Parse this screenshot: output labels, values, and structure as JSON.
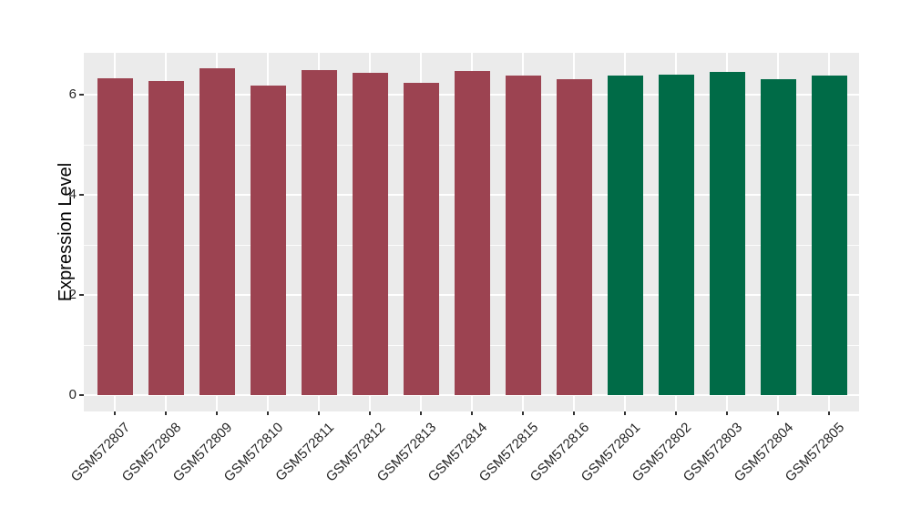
{
  "chart_data": {
    "type": "bar",
    "title": "",
    "xlabel": "",
    "ylabel": "Expression Level",
    "categories": [
      "GSM572807",
      "GSM572808",
      "GSM572809",
      "GSM572810",
      "GSM572811",
      "GSM572812",
      "GSM572813",
      "GSM572814",
      "GSM572815",
      "GSM572816",
      "GSM572801",
      "GSM572802",
      "GSM572803",
      "GSM572804",
      "GSM572805"
    ],
    "values": [
      6.33,
      6.28,
      6.53,
      6.18,
      6.5,
      6.44,
      6.23,
      6.48,
      6.39,
      6.31,
      6.39,
      6.4,
      6.46,
      6.31,
      6.38
    ],
    "bar_groups": [
      "A",
      "A",
      "A",
      "A",
      "A",
      "A",
      "A",
      "A",
      "A",
      "A",
      "B",
      "B",
      "B",
      "B",
      "B"
    ],
    "group_colors": {
      "A": "#9C4351",
      "B": "#006B47"
    },
    "yticks": [
      0,
      2,
      4,
      6
    ],
    "yminor": [
      1,
      3,
      5
    ],
    "ylim": [
      -0.33,
      6.85
    ],
    "grid": "on",
    "legend": "none",
    "style": {
      "figure_background": "#FFFFFF",
      "panel_background": "#EBEBEB",
      "gridline_color": "#FFFFFF",
      "axis_text_color": "#262626",
      "axis_title_color": "#000000",
      "tick_mark_color": "#333333"
    }
  }
}
